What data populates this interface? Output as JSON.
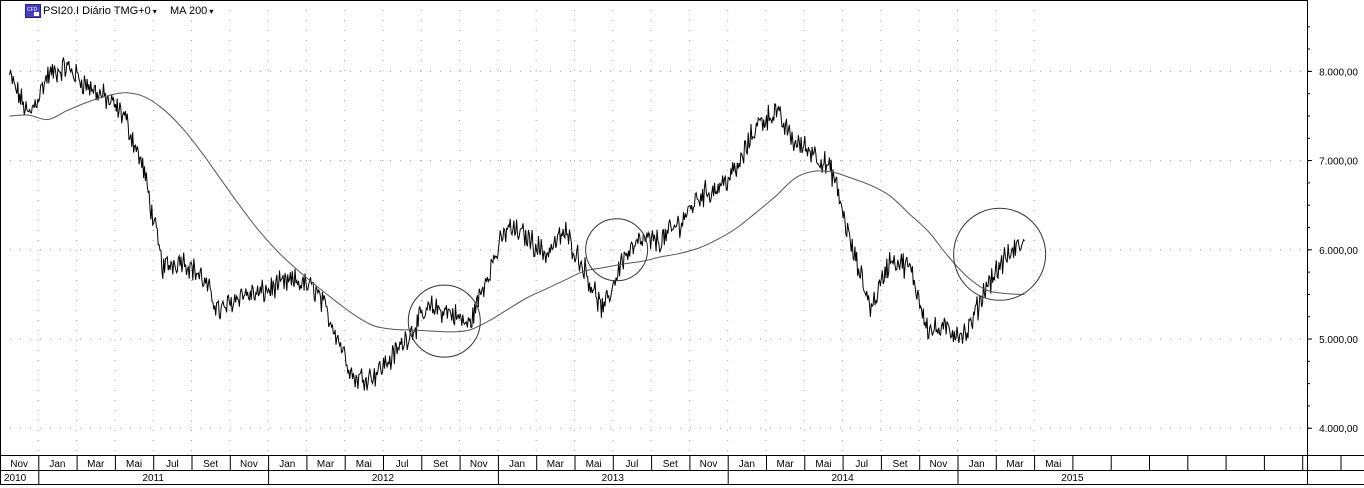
{
  "header": {
    "symbol_label": "PSI20.I Diário TMG+0",
    "ma_label": "MA 200",
    "caret": "▾",
    "icon_name": "cfd-instrument-icon"
  },
  "colors": {
    "price_line": "#000000",
    "ma_line": "#555555",
    "grid": "#9a9a9a",
    "circle": "#333333",
    "icon_bg": "#4a3fb8"
  },
  "chart_data": {
    "type": "line",
    "title": "",
    "xlabel": "",
    "ylabel": "",
    "ylim": [
      3700,
      8800
    ],
    "y_ticks": [
      4000,
      5000,
      6000,
      7000,
      8000
    ],
    "y_tick_labels": [
      "4.000,00",
      "5.000,00",
      "6.000,00",
      "7.000,00",
      "8.000,00"
    ],
    "grid": true,
    "x_months": [
      "Nov",
      "Jan",
      "Mar",
      "Mai",
      "Jul",
      "Set",
      "Nov",
      "Jan",
      "Mar",
      "Mai",
      "Jul",
      "Set",
      "Nov",
      "Jan",
      "Mar",
      "Mai",
      "Jul",
      "Set",
      "Nov",
      "Jan",
      "Mar",
      "Mai",
      "Jul",
      "Set",
      "Nov",
      "Jan",
      "Mar",
      "Mai"
    ],
    "x_years": [
      {
        "label": "2010",
        "start": "2010-11",
        "end": "2010-12"
      },
      {
        "label": "2011",
        "start": "2011-01",
        "end": "2011-12"
      },
      {
        "label": "2012",
        "start": "2012-01",
        "end": "2012-12"
      },
      {
        "label": "2013",
        "start": "2013-01",
        "end": "2013-12"
      },
      {
        "label": "2014",
        "start": "2014-01",
        "end": "2014-12"
      },
      {
        "label": "2015",
        "start": "2015-01",
        "end": "2015-12"
      }
    ],
    "series": [
      {
        "name": "PSI20.I",
        "x": [
          "2010-11",
          "2010-12",
          "2011-01",
          "2011-02",
          "2011-03",
          "2011-04",
          "2011-05",
          "2011-06",
          "2011-07",
          "2011-08",
          "2011-09",
          "2011-10",
          "2011-11",
          "2011-12",
          "2012-01",
          "2012-02",
          "2012-03",
          "2012-04",
          "2012-05",
          "2012-06",
          "2012-07",
          "2012-08",
          "2012-09",
          "2012-10",
          "2012-11",
          "2012-12",
          "2013-01",
          "2013-02",
          "2013-03",
          "2013-04",
          "2013-05",
          "2013-06",
          "2013-07",
          "2013-08",
          "2013-09",
          "2013-10",
          "2013-11",
          "2013-12",
          "2014-01",
          "2014-02",
          "2014-03",
          "2014-04",
          "2014-05",
          "2014-06",
          "2014-07",
          "2014-08",
          "2014-09",
          "2014-10",
          "2014-11",
          "2014-12",
          "2015-01",
          "2015-02",
          "2015-03",
          "2015-04"
        ],
        "values": [
          7950,
          7500,
          7950,
          8050,
          7850,
          7700,
          7500,
          6900,
          5800,
          5900,
          5700,
          5300,
          5500,
          5500,
          5600,
          5650,
          5550,
          5100,
          4550,
          4600,
          4800,
          5100,
          5350,
          5300,
          5150,
          5750,
          6250,
          6150,
          5950,
          6200,
          5800,
          5300,
          5900,
          6100,
          6100,
          6300,
          6600,
          6700,
          6900,
          7400,
          7550,
          7200,
          7100,
          6850,
          6000,
          5350,
          5900,
          5800,
          5100,
          5100,
          5050,
          5600,
          5900,
          6100
        ]
      },
      {
        "name": "MA 200",
        "x": [
          "2010-11",
          "2010-12",
          "2011-01",
          "2011-02",
          "2011-03",
          "2011-04",
          "2011-05",
          "2011-06",
          "2011-07",
          "2011-08",
          "2011-09",
          "2011-10",
          "2011-11",
          "2011-12",
          "2012-01",
          "2012-02",
          "2012-03",
          "2012-04",
          "2012-05",
          "2012-06",
          "2012-07",
          "2012-08",
          "2012-09",
          "2012-10",
          "2012-11",
          "2012-12",
          "2013-01",
          "2013-02",
          "2013-03",
          "2013-04",
          "2013-05",
          "2013-06",
          "2013-07",
          "2013-08",
          "2013-09",
          "2013-10",
          "2013-11",
          "2013-12",
          "2014-01",
          "2014-02",
          "2014-03",
          "2014-04",
          "2014-05",
          "2014-06",
          "2014-07",
          "2014-08",
          "2014-09",
          "2014-10",
          "2014-11",
          "2014-12",
          "2015-01",
          "2015-02",
          "2015-03",
          "2015-04"
        ],
        "values": [
          7500,
          7510,
          7460,
          7560,
          7650,
          7720,
          7760,
          7720,
          7580,
          7370,
          7100,
          6800,
          6500,
          6220,
          5980,
          5780,
          5600,
          5430,
          5270,
          5150,
          5110,
          5100,
          5090,
          5080,
          5100,
          5200,
          5330,
          5460,
          5560,
          5660,
          5760,
          5800,
          5840,
          5870,
          5920,
          5960,
          6020,
          6120,
          6250,
          6420,
          6600,
          6800,
          6880,
          6870,
          6800,
          6720,
          6600,
          6400,
          6200,
          5930,
          5700,
          5550,
          5510,
          5500
        ]
      }
    ],
    "annotations": [
      {
        "type": "circle",
        "center": "2012-10",
        "value": 5200
      },
      {
        "type": "circle",
        "center": "2013-07",
        "value": 6000
      },
      {
        "type": "circle",
        "center": "2015-03",
        "value": 5950
      }
    ]
  }
}
